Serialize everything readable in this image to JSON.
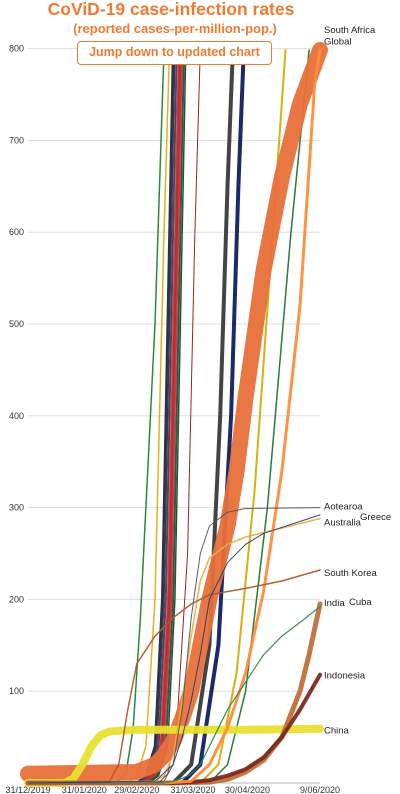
{
  "header": {
    "title": "CoViD-19 case-infection rates",
    "subtitle": "(reported cases-per-million-pop.)",
    "jump_button": "Jump down to updated chart"
  },
  "chart_data": {
    "type": "line",
    "title": "CoViD-19 case-infection rates",
    "subtitle": "(reported cases-per-million-pop.)",
    "x_tick_labels": [
      "31/12/2019",
      "31/01/2020",
      "29/02/2020",
      "31/03/2020",
      "30/04/2020",
      "9/06/2020"
    ],
    "x_tick_days": [
      0,
      31,
      60,
      91,
      121,
      161
    ],
    "ylim": [
      0,
      800
    ],
    "y_ticks": [
      100,
      200,
      300,
      400,
      500,
      600,
      700,
      800
    ],
    "grid": true,
    "series": [
      {
        "name": "South Africa",
        "color": "#ff8c3a",
        "width": 3,
        "label_y": 820,
        "x": [
          0,
          60,
          75,
          90,
          100,
          110,
          120,
          130,
          140,
          150,
          158,
          161
        ],
        "y": [
          0,
          0,
          0,
          2,
          20,
          60,
          120,
          210,
          340,
          520,
          760,
          860
        ]
      },
      {
        "name": "Global",
        "color": "#e8703a",
        "width": 16,
        "label_y": 808,
        "x": [
          0,
          60,
          70,
          75,
          80,
          85,
          90,
          95,
          100,
          105,
          110,
          115,
          120,
          125,
          130,
          140,
          150,
          161
        ],
        "y": [
          10,
          12,
          20,
          30,
          45,
          70,
          100,
          150,
          200,
          240,
          280,
          340,
          420,
          490,
          560,
          660,
          740,
          840
        ]
      },
      {
        "name": "China",
        "color": "#e8e030",
        "width": 8,
        "label_y": 57,
        "x": [
          0,
          20,
          25,
          30,
          35,
          40,
          45,
          50,
          60,
          90,
          120,
          161
        ],
        "y": [
          0,
          0,
          5,
          20,
          40,
          52,
          56,
          57,
          58,
          58,
          58,
          59
        ]
      },
      {
        "name": "Aotearoa",
        "color": "#555555",
        "width": 1,
        "label_y": 301,
        "x": [
          0,
          70,
          75,
          80,
          85,
          90,
          95,
          100,
          110,
          120,
          161
        ],
        "y": [
          0,
          0,
          2,
          20,
          80,
          180,
          250,
          280,
          295,
          299,
          300
        ]
      },
      {
        "name": "Australia",
        "color": "#e8b040",
        "width": 1.5,
        "label_y": 284,
        "x": [
          0,
          70,
          75,
          80,
          85,
          90,
          95,
          100,
          110,
          120,
          161
        ],
        "y": [
          0,
          2,
          8,
          30,
          90,
          160,
          220,
          245,
          260,
          268,
          288
        ]
      },
      {
        "name": "Greece",
        "color": "#2a3a7a",
        "width": 1,
        "label_y": 290,
        "x": [
          0,
          70,
          80,
          85,
          90,
          95,
          100,
          110,
          120,
          130,
          161
        ],
        "y": [
          0,
          2,
          20,
          50,
          90,
          140,
          200,
          240,
          260,
          272,
          292
        ]
      },
      {
        "name": "South Korea",
        "color": "#b05a2a",
        "width": 1.5,
        "label_y": 229,
        "x": [
          0,
          40,
          45,
          50,
          55,
          60,
          65,
          70,
          80,
          90,
          100,
          120,
          140,
          161
        ],
        "y": [
          0,
          0,
          2,
          20,
          80,
          130,
          145,
          160,
          180,
          195,
          205,
          212,
          220,
          232
        ]
      },
      {
        "name": "India",
        "color": "#c0703a",
        "width": 5,
        "label_y": 196,
        "x": [
          0,
          80,
          100,
          110,
          120,
          130,
          140,
          150,
          155,
          161
        ],
        "y": [
          0,
          0,
          1,
          4,
          12,
          25,
          50,
          100,
          140,
          195
        ]
      },
      {
        "name": "Cuba",
        "color": "#2a8a4a",
        "width": 1.2,
        "label_y": 197,
        "x": [
          0,
          75,
          80,
          85,
          90,
          95,
          100,
          110,
          120,
          130,
          140,
          150,
          161
        ],
        "y": [
          0,
          0,
          2,
          5,
          10,
          20,
          40,
          80,
          110,
          140,
          160,
          175,
          192
        ]
      },
      {
        "name": "Indonesia",
        "color": "#7a2a20",
        "width": 4,
        "label_y": 117,
        "x": [
          0,
          80,
          90,
          100,
          110,
          120,
          130,
          140,
          150,
          161
        ],
        "y": [
          0,
          0,
          1,
          3,
          8,
          15,
          28,
          50,
          80,
          118
        ]
      }
    ],
    "steep_series": [
      {
        "color": "#2a8a3a",
        "width": 1.5,
        "x": [
          0,
          48,
          54,
          58,
          62,
          70,
          75
        ],
        "y": [
          0,
          0,
          10,
          60,
          180,
          500,
          800
        ]
      },
      {
        "color": "#e8b020",
        "width": 1.5,
        "x": [
          0,
          55,
          60,
          65,
          70,
          75,
          78
        ],
        "y": [
          0,
          0,
          8,
          40,
          200,
          600,
          800
        ]
      },
      {
        "color": "#333333",
        "width": 2.5,
        "x": [
          0,
          60,
          65,
          70,
          74,
          78,
          80
        ],
        "y": [
          0,
          0,
          8,
          40,
          200,
          600,
          800
        ]
      },
      {
        "color": "#1a3a8a",
        "width": 1.5,
        "x": [
          0,
          61,
          66,
          71,
          75,
          79,
          81
        ],
        "y": [
          0,
          0,
          8,
          40,
          200,
          600,
          800
        ]
      },
      {
        "color": "#7a3a2a",
        "width": 2,
        "x": [
          0,
          62,
          67,
          72,
          76,
          80,
          82
        ],
        "y": [
          0,
          0,
          8,
          40,
          200,
          600,
          800
        ]
      },
      {
        "color": "#6a6a9a",
        "width": 1.5,
        "x": [
          0,
          63,
          68,
          73,
          77,
          81,
          83
        ],
        "y": [
          0,
          0,
          8,
          40,
          200,
          600,
          800
        ]
      },
      {
        "color": "#e02020",
        "width": 3,
        "x": [
          0,
          64,
          69,
          74,
          78,
          82,
          84
        ],
        "y": [
          0,
          0,
          8,
          40,
          200,
          600,
          800
        ]
      },
      {
        "color": "#a05050",
        "width": 1.5,
        "x": [
          0,
          65,
          70,
          75,
          79,
          83,
          85
        ],
        "y": [
          0,
          0,
          8,
          40,
          200,
          600,
          800
        ]
      },
      {
        "color": "#4a4a4a",
        "width": 2,
        "x": [
          0,
          66,
          71,
          76,
          80,
          84,
          86
        ],
        "y": [
          0,
          0,
          8,
          40,
          200,
          600,
          800
        ]
      },
      {
        "color": "#1a5a2a",
        "width": 1.5,
        "x": [
          0,
          67,
          72,
          77,
          81,
          85,
          87
        ],
        "y": [
          0,
          0,
          8,
          40,
          200,
          600,
          800
        ]
      },
      {
        "color": "#8a2a2a",
        "width": 1,
        "x": [
          0,
          72,
          77,
          82,
          88,
          92,
          95
        ],
        "y": [
          0,
          0,
          10,
          60,
          250,
          600,
          800
        ]
      },
      {
        "color": "#444444",
        "width": 4,
        "x": [
          0,
          80,
          90,
          100,
          106,
          110,
          113
        ],
        "y": [
          0,
          0,
          20,
          150,
          400,
          650,
          800
        ]
      },
      {
        "color": "#1a2a6a",
        "width": 4,
        "x": [
          0,
          85,
          95,
          105,
          112,
          116,
          119
        ],
        "y": [
          0,
          0,
          20,
          150,
          400,
          650,
          800
        ]
      },
      {
        "color": "#d8b010",
        "width": 2,
        "x": [
          0,
          95,
          105,
          115,
          125,
          135,
          142
        ],
        "y": [
          0,
          0,
          20,
          120,
          320,
          600,
          800
        ]
      },
      {
        "color": "#2a7a3a",
        "width": 1.5,
        "x": [
          0,
          100,
          110,
          120,
          132,
          145,
          155
        ],
        "y": [
          0,
          0,
          20,
          100,
          300,
          600,
          800
        ]
      }
    ]
  }
}
